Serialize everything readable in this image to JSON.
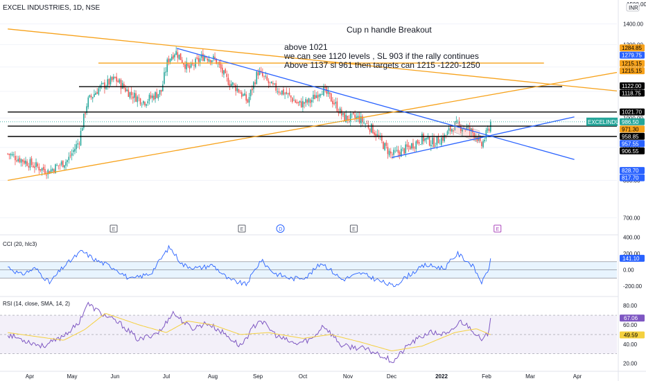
{
  "header": {
    "symbol": "EXCEL INDUSTRIES, 1D, NSE",
    "currency": "INR",
    "currency_top_value": "1500.00"
  },
  "annotations": {
    "headline": "Cup n handle Breakout",
    "line1": "above 1021",
    "line2": "we can see 1120 levels , SL 903   if the rally continues",
    "line3": "Above 1137 sl 961 then targets can 1215 -1220-1250"
  },
  "colors": {
    "up": "#26a69a",
    "down": "#ef5350",
    "trend_orange": "#f7a21b",
    "trend_blue": "#2962ff",
    "hline_black": "#000000",
    "cci": "#2962ff",
    "rsi": "#7e57c2",
    "rsi_ma": "#f4d03f",
    "symbol_tag": "#26a69a",
    "level_orange": "#f7a21b",
    "level_blue": "#2962ff"
  },
  "chart_data": [
    {
      "type": "candlestick",
      "title": "EXCEL INDUSTRIES, 1D, NSE",
      "x_labels": [
        "Apr",
        "May",
        "Jun",
        "Jul",
        "Aug",
        "Sep",
        "Oct",
        "Nov",
        "Dec",
        "2022",
        "Feb",
        "Mar",
        "Apr"
      ],
      "y_ticks": [
        700,
        800,
        900,
        1000,
        1100,
        1200,
        1300,
        1400,
        1500
      ],
      "y_tick_labels": [
        "700.00",
        "800.00",
        "900.00",
        "1000.00",
        "1100.00",
        "1200.00",
        "1300.00",
        "1400.00",
        "1500.00"
      ],
      "ylim": [
        660,
        1510
      ],
      "log_scale": true,
      "current_price": 986.5,
      "symbol_tag": "EXCELINDUS",
      "price_anchors": [
        {
          "date": "Mar-15",
          "close": 880
        },
        {
          "date": "Apr-05",
          "close": 842
        },
        {
          "date": "Apr-14",
          "close": 826
        },
        {
          "date": "Apr-28",
          "close": 860
        },
        {
          "date": "May-06",
          "close": 920
        },
        {
          "date": "May-12",
          "close": 1060
        },
        {
          "date": "May-20",
          "close": 1110
        },
        {
          "date": "Jun-01",
          "close": 1150
        },
        {
          "date": "Jun-10",
          "close": 1090
        },
        {
          "date": "Jun-18",
          "close": 1060
        },
        {
          "date": "Jun-28",
          "close": 1100
        },
        {
          "date": "Jul-02",
          "close": 1230
        },
        {
          "date": "Jul-07",
          "close": 1270
        },
        {
          "date": "Jul-16",
          "close": 1190
        },
        {
          "date": "Jul-26",
          "close": 1250
        },
        {
          "date": "Aug-03",
          "close": 1230
        },
        {
          "date": "Aug-10",
          "close": 1150
        },
        {
          "date": "Aug-18",
          "close": 1110
        },
        {
          "date": "Aug-25",
          "close": 1060
        },
        {
          "date": "Sep-01",
          "close": 1180
        },
        {
          "date": "Sep-10",
          "close": 1120
        },
        {
          "date": "Sep-20",
          "close": 1090
        },
        {
          "date": "Sep-28",
          "close": 1050
        },
        {
          "date": "Oct-06",
          "close": 1060
        },
        {
          "date": "Oct-14",
          "close": 1110
        },
        {
          "date": "Oct-22",
          "close": 1060
        },
        {
          "date": "Oct-29",
          "close": 1000
        },
        {
          "date": "Nov-08",
          "close": 1000
        },
        {
          "date": "Nov-18",
          "close": 960
        },
        {
          "date": "Nov-25",
          "close": 910
        },
        {
          "date": "Dec-01",
          "close": 875
        },
        {
          "date": "Dec-10",
          "close": 895
        },
        {
          "date": "Dec-20",
          "close": 930
        },
        {
          "date": "Dec-27",
          "close": 915
        },
        {
          "date": "Jan-03",
          "close": 935
        },
        {
          "date": "Jan-10",
          "close": 975
        },
        {
          "date": "Jan-18",
          "close": 965
        },
        {
          "date": "Jan-25",
          "close": 940
        },
        {
          "date": "Jan-28",
          "close": 900
        },
        {
          "date": "Feb-01",
          "close": 945
        },
        {
          "date": "Feb-04",
          "close": 986.5
        }
      ],
      "horizontal_lines": [
        {
          "price": 1118.75,
          "color": "black",
          "from": "May-06",
          "to": "Mar-22"
        },
        {
          "price": 1021.7,
          "color": "black",
          "from": "Mar-15",
          "to": "Apr-30"
        },
        {
          "price": 971.3,
          "color": "black",
          "from": "Mar-15",
          "to": "Apr-30"
        },
        {
          "price": 936.0,
          "color": "black",
          "from": "Mar-15",
          "to": "Apr-30"
        },
        {
          "price": 1217.0,
          "color": "orange",
          "from": "May-20",
          "to": "Mar-10"
        }
      ],
      "trend_lines": [
        {
          "color": "orange",
          "p1": {
            "date": "Mar-15",
            "price": 1375
          },
          "p2": {
            "date": "Apr-30",
            "price": 1100
          }
        },
        {
          "color": "orange",
          "p1": {
            "date": "Mar-15",
            "price": 800
          },
          "p2": {
            "date": "Apr-30",
            "price": 1180
          }
        },
        {
          "color": "blue",
          "p1": {
            "date": "Jul-08",
            "price": 1283
          },
          "p2": {
            "date": "Mar-30",
            "price": 862
          }
        },
        {
          "color": "blue",
          "p1": {
            "date": "Dec-01",
            "price": 868
          },
          "p2": {
            "date": "Mar-30",
            "price": 1004
          }
        }
      ],
      "price_tags": [
        {
          "label": "1284.85",
          "price": 1284.85,
          "style": "orange"
        },
        {
          "label": "1279.75",
          "price": 1279.75,
          "style": "blue"
        },
        {
          "label": "1215.15",
          "price": 1215.15,
          "style": "orange"
        },
        {
          "label": "1215.15",
          "price": 1215.15,
          "style": "orange"
        },
        {
          "label": "1122.00",
          "price": 1122.0,
          "style": "black"
        },
        {
          "label": "1118.75",
          "price": 1118.75,
          "style": "black"
        },
        {
          "label": "1021.70",
          "price": 1021.7,
          "style": "black"
        },
        {
          "label": "986.50",
          "price": 986.5,
          "style": "green"
        },
        {
          "label": "971.30",
          "price": 971.3,
          "style": "orange"
        },
        {
          "label": "958.85",
          "price": 958.85,
          "style": "black"
        },
        {
          "label": "957.55",
          "price": 957.55,
          "style": "blue"
        },
        {
          "label": "906.55",
          "price": 906.55,
          "style": "black"
        },
        {
          "label": "828.70",
          "price": 828.7,
          "style": "blue"
        },
        {
          "label": "817.70",
          "price": 817.7,
          "style": "blue"
        }
      ],
      "events": [
        {
          "label": "E",
          "date": "May-31",
          "style": "gray"
        },
        {
          "label": "E",
          "date": "Aug-21",
          "style": "gray"
        },
        {
          "label": "D",
          "date": "Sep-16",
          "style": "blue"
        },
        {
          "label": "E",
          "date": "Nov-05",
          "style": "gray"
        },
        {
          "label": "E",
          "date": "Feb-08",
          "style": "purple"
        }
      ]
    },
    {
      "type": "line",
      "title": "CCI (20, hlc3)",
      "y_ticks": [
        -200,
        0,
        200,
        400
      ],
      "y_tick_labels": [
        "-200.00",
        "0.00",
        "200.00",
        "400.00"
      ],
      "ylim": [
        -300,
        420
      ],
      "band": [
        -100,
        100
      ],
      "last_value": 141.1,
      "last_label": "141.10",
      "anchors": [
        {
          "date": "Mar-15",
          "value": 40
        },
        {
          "date": "Mar-25",
          "value": -60
        },
        {
          "date": "Apr-05",
          "value": 20
        },
        {
          "date": "Apr-15",
          "value": -160
        },
        {
          "date": "Apr-25",
          "value": 40
        },
        {
          "date": "May-08",
          "value": 230
        },
        {
          "date": "May-18",
          "value": 120
        },
        {
          "date": "Jun-01",
          "value": 20
        },
        {
          "date": "Jun-10",
          "value": -120
        },
        {
          "date": "Jun-22",
          "value": -40
        },
        {
          "date": "Jul-03",
          "value": 280
        },
        {
          "date": "Jul-12",
          "value": 60
        },
        {
          "date": "Jul-22",
          "value": 20
        },
        {
          "date": "Aug-01",
          "value": 60
        },
        {
          "date": "Aug-12",
          "value": -120
        },
        {
          "date": "Aug-24",
          "value": -180
        },
        {
          "date": "Sep-03",
          "value": 120
        },
        {
          "date": "Sep-12",
          "value": -40
        },
        {
          "date": "Sep-24",
          "value": -110
        },
        {
          "date": "Oct-04",
          "value": -80
        },
        {
          "date": "Oct-14",
          "value": 90
        },
        {
          "date": "Oct-28",
          "value": -120
        },
        {
          "date": "Nov-10",
          "value": -40
        },
        {
          "date": "Nov-22",
          "value": -130
        },
        {
          "date": "Dec-02",
          "value": -200
        },
        {
          "date": "Dec-12",
          "value": -60
        },
        {
          "date": "Dec-22",
          "value": 60
        },
        {
          "date": "Jan-03",
          "value": 20
        },
        {
          "date": "Jan-12",
          "value": 200
        },
        {
          "date": "Jan-22",
          "value": 60
        },
        {
          "date": "Jan-29",
          "value": -160
        },
        {
          "date": "Feb-02",
          "value": 0
        },
        {
          "date": "Feb-04",
          "value": 141.1
        }
      ]
    },
    {
      "type": "line",
      "title": "RSI (14, close, SMA, 14, 2)",
      "y_ticks": [
        20,
        40,
        60,
        80
      ],
      "y_tick_labels": [
        "20.00",
        "40.00",
        "60.00",
        "80.00"
      ],
      "ylim": [
        14,
        88
      ],
      "band": [
        30,
        70
      ],
      "series": [
        {
          "name": "RSI",
          "last_value": 67.06,
          "last_label": "67.06"
        },
        {
          "name": "MA",
          "last_value": 49.59,
          "last_label": "49.59"
        }
      ],
      "rsi_anchors": [
        {
          "date": "Mar-15",
          "value": 50
        },
        {
          "date": "Mar-28",
          "value": 44
        },
        {
          "date": "Apr-10",
          "value": 38
        },
        {
          "date": "Apr-20",
          "value": 44
        },
        {
          "date": "May-05",
          "value": 60
        },
        {
          "date": "May-12",
          "value": 82
        },
        {
          "date": "May-22",
          "value": 72
        },
        {
          "date": "Jun-05",
          "value": 60
        },
        {
          "date": "Jun-15",
          "value": 44
        },
        {
          "date": "Jun-28",
          "value": 54
        },
        {
          "date": "Jul-05",
          "value": 73
        },
        {
          "date": "Jul-18",
          "value": 56
        },
        {
          "date": "Jul-28",
          "value": 62
        },
        {
          "date": "Aug-08",
          "value": 52
        },
        {
          "date": "Aug-20",
          "value": 38
        },
        {
          "date": "Sep-02",
          "value": 66
        },
        {
          "date": "Sep-14",
          "value": 48
        },
        {
          "date": "Sep-26",
          "value": 40
        },
        {
          "date": "Oct-08",
          "value": 46
        },
        {
          "date": "Oct-15",
          "value": 60
        },
        {
          "date": "Oct-28",
          "value": 38
        },
        {
          "date": "Nov-10",
          "value": 36
        },
        {
          "date": "Nov-22",
          "value": 30
        },
        {
          "date": "Dec-02",
          "value": 22
        },
        {
          "date": "Dec-12",
          "value": 40
        },
        {
          "date": "Dec-24",
          "value": 52
        },
        {
          "date": "Jan-06",
          "value": 50
        },
        {
          "date": "Jan-14",
          "value": 64
        },
        {
          "date": "Jan-22",
          "value": 56
        },
        {
          "date": "Jan-29",
          "value": 42
        },
        {
          "date": "Feb-02",
          "value": 52
        },
        {
          "date": "Feb-04",
          "value": 67.06
        }
      ],
      "ma_anchors": [
        {
          "date": "Mar-15",
          "value": 52
        },
        {
          "date": "Apr-05",
          "value": 48
        },
        {
          "date": "Apr-25",
          "value": 44
        },
        {
          "date": "May-10",
          "value": 55
        },
        {
          "date": "May-25",
          "value": 72
        },
        {
          "date": "Jun-15",
          "value": 60
        },
        {
          "date": "Jul-01",
          "value": 52
        },
        {
          "date": "Jul-15",
          "value": 64
        },
        {
          "date": "Aug-01",
          "value": 60
        },
        {
          "date": "Aug-20",
          "value": 50
        },
        {
          "date": "Sep-08",
          "value": 52
        },
        {
          "date": "Oct-01",
          "value": 46
        },
        {
          "date": "Oct-20",
          "value": 50
        },
        {
          "date": "Nov-10",
          "value": 42
        },
        {
          "date": "Dec-01",
          "value": 33
        },
        {
          "date": "Dec-20",
          "value": 38
        },
        {
          "date": "Jan-10",
          "value": 52
        },
        {
          "date": "Jan-25",
          "value": 56
        },
        {
          "date": "Feb-04",
          "value": 49.59
        }
      ]
    }
  ]
}
